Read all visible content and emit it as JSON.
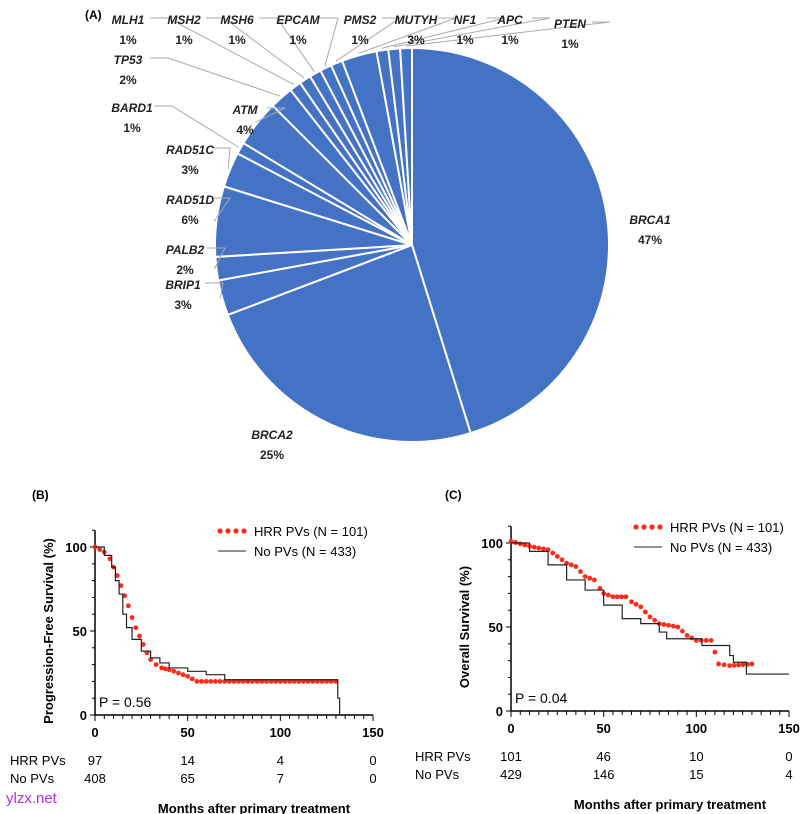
{
  "panels": {
    "a": "(A)",
    "b": "(B)",
    "c": "(C)"
  },
  "watermark": "ylzx.net",
  "chart_data": [
    {
      "type": "pie",
      "color": "#4472c4",
      "slices": [
        {
          "label": "BRCA1",
          "pct": "47%",
          "value": 47
        },
        {
          "label": "BRCA2",
          "pct": "25%",
          "value": 25
        },
        {
          "label": "BRIP1",
          "pct": "3%",
          "value": 3
        },
        {
          "label": "PALB2",
          "pct": "2%",
          "value": 2
        },
        {
          "label": "RAD51D",
          "pct": "6%",
          "value": 6
        },
        {
          "label": "RAD51C",
          "pct": "3%",
          "value": 3
        },
        {
          "label": "BARD1",
          "pct": "1%",
          "value": 1
        },
        {
          "label": "ATM",
          "pct": "4%",
          "value": 4
        },
        {
          "label": "TP53",
          "pct": "2%",
          "value": 2
        },
        {
          "label": "MLH1",
          "pct": "1%",
          "value": 1
        },
        {
          "label": "MSH2",
          "pct": "1%",
          "value": 1
        },
        {
          "label": "MSH6",
          "pct": "1%",
          "value": 1
        },
        {
          "label": "EPCAM",
          "pct": "1%",
          "value": 1
        },
        {
          "label": "PMS2",
          "pct": "1%",
          "value": 1
        },
        {
          "label": "MUTYH",
          "pct": "3%",
          "value": 3
        },
        {
          "label": "NF1",
          "pct": "1%",
          "value": 1
        },
        {
          "label": "APC",
          "pct": "1%",
          "value": 1
        },
        {
          "label": "PTEN",
          "pct": "1%",
          "value": 1
        }
      ]
    },
    {
      "type": "line",
      "ylabel": "Progression-Free Survival (%)",
      "xlabel": "Months after primary treatment",
      "xlim": [
        0,
        150
      ],
      "ylim": [
        0,
        110
      ],
      "xticks": [
        "0",
        "50",
        "100",
        "150"
      ],
      "yticks": [
        "0",
        "50",
        "100"
      ],
      "pvalue": "P = 0.56",
      "legend": "top-right",
      "series": [
        {
          "name": "HRR PVs",
          "legend_label": "HRR PVs (N = 101)",
          "color": "#ff2a1a",
          "style": "dotted",
          "x": [
            0,
            5,
            8,
            10,
            12,
            14,
            16,
            18,
            20,
            22,
            24,
            26,
            28,
            30,
            33,
            36,
            40,
            45,
            50,
            55,
            60,
            130
          ],
          "y": [
            100,
            97,
            93,
            88,
            83,
            77,
            71,
            65,
            58,
            52,
            47,
            42,
            37,
            33,
            30,
            28,
            27,
            25,
            23,
            20,
            20,
            20
          ]
        },
        {
          "name": "No PVs",
          "legend_label": "No PVs (N = 433)",
          "color": "#222222",
          "style": "step",
          "x": [
            0,
            5,
            9,
            11,
            13,
            15,
            17,
            20,
            25,
            30,
            35,
            40,
            50,
            60,
            70,
            100,
            131,
            131,
            132
          ],
          "y": [
            100,
            95,
            88,
            80,
            72,
            60,
            52,
            45,
            38,
            34,
            31,
            28,
            26,
            24,
            21,
            21,
            21,
            10,
            0
          ]
        }
      ],
      "risk_table": {
        "rows": [
          {
            "label": "HRR PVs",
            "values": [
              "97",
              "14",
              "4",
              "0"
            ]
          },
          {
            "label": "No PVs",
            "values": [
              "408",
              "65",
              "7",
              "0"
            ]
          }
        ]
      }
    },
    {
      "type": "line",
      "ylabel": "Overall Survival (%)",
      "xlabel": "Months after primary treatment",
      "xlim": [
        0,
        150
      ],
      "ylim": [
        0,
        110
      ],
      "xticks": [
        "0",
        "50",
        "100",
        "150"
      ],
      "yticks": [
        "0",
        "50",
        "100"
      ],
      "pvalue": "P = 0.04",
      "legend": "top-right",
      "series": [
        {
          "name": "HRR PVs",
          "legend_label": "HRR PVs (N = 101)",
          "color": "#ff2a1a",
          "style": "dotted",
          "x": [
            0,
            10,
            20,
            30,
            35,
            40,
            45,
            48,
            50,
            55,
            62,
            65,
            70,
            75,
            80,
            90,
            95,
            100,
            108,
            110,
            112,
            118,
            130
          ],
          "y": [
            101,
            98,
            96,
            88,
            86,
            80,
            78,
            73,
            70,
            68,
            68,
            65,
            62,
            56,
            52,
            50,
            45,
            42,
            42,
            35,
            28,
            27,
            28
          ]
        },
        {
          "name": "No PVs",
          "legend_label": "No PVs (N = 433)",
          "color": "#222222",
          "style": "step",
          "x": [
            0,
            10,
            20,
            30,
            40,
            50,
            60,
            70,
            80,
            84,
            100,
            103,
            117,
            118,
            120,
            126,
            127,
            150
          ],
          "y": [
            100,
            95,
            87,
            78,
            72,
            63,
            55,
            52,
            47,
            43,
            43,
            39,
            39,
            33,
            29,
            29,
            22,
            22
          ]
        }
      ],
      "risk_table": {
        "rows": [
          {
            "label": "HRR PVs",
            "values": [
              "101",
              "46",
              "10",
              "0"
            ]
          },
          {
            "label": "No PVs",
            "values": [
              "429",
              "146",
              "15",
              "4"
            ]
          }
        ]
      }
    }
  ]
}
